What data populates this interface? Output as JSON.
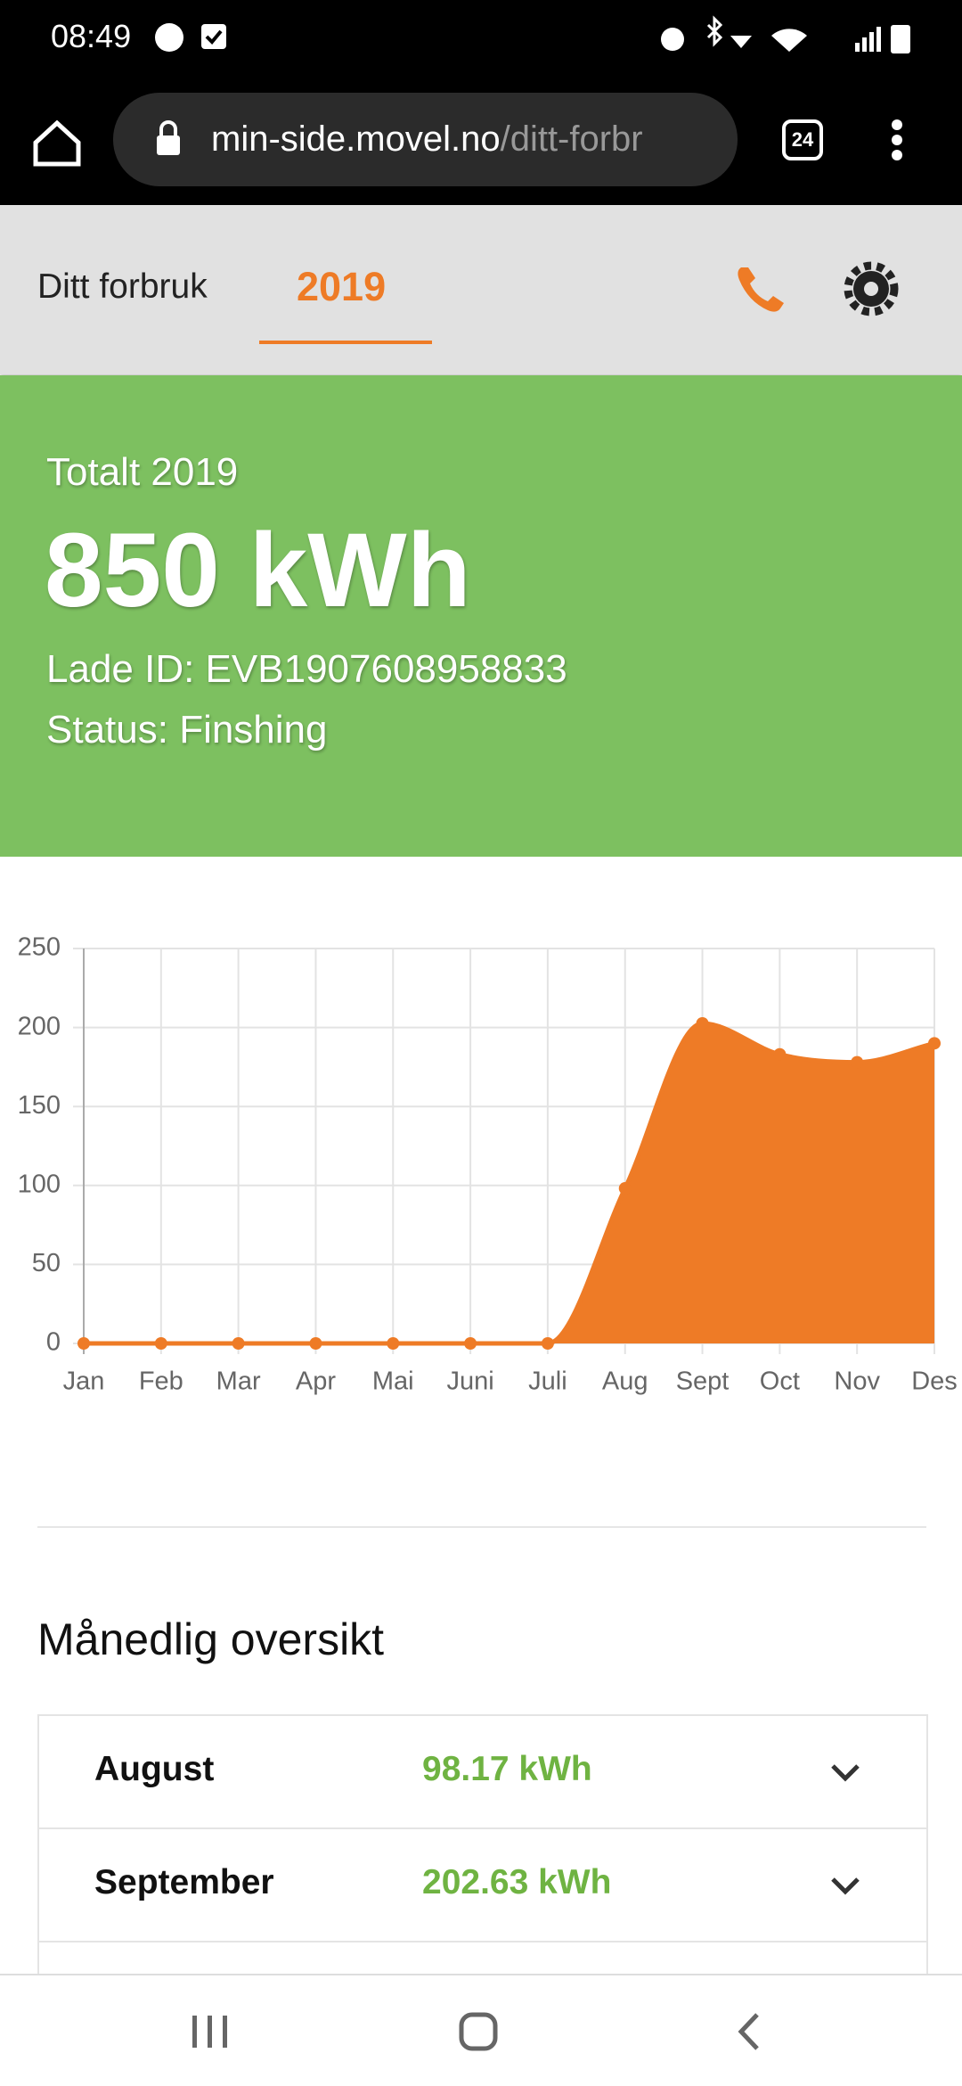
{
  "status_bar": {
    "time": "08:49"
  },
  "browser": {
    "url_host": "min-side.movel.no",
    "url_path": "/ditt-forbr",
    "tab_count": "24"
  },
  "header": {
    "tab_label": "Ditt forbruk",
    "active_tab": "2019"
  },
  "summary": {
    "label": "Totalt 2019",
    "total": "850 kWh",
    "lade_id": "Lade ID: EVB1907608958833",
    "status": "Status: Finshing"
  },
  "chart_data": {
    "type": "area",
    "categories": [
      "Jan",
      "Feb",
      "Mar",
      "Apr",
      "Mai",
      "Juni",
      "Juli",
      "Aug",
      "Sept",
      "Oct",
      "Nov",
      "Des"
    ],
    "values": [
      0,
      0,
      0,
      0,
      0,
      0,
      0,
      98.17,
      202.63,
      183,
      178,
      190
    ],
    "color": "#ee7b26",
    "ylim": [
      0,
      250
    ],
    "yticks": [
      0,
      50,
      100,
      150,
      200,
      250
    ],
    "grid": true
  },
  "overview": {
    "title": "Månedlig oversikt",
    "rows": [
      {
        "month": "August",
        "value": "98.17 kWh"
      },
      {
        "month": "September",
        "value": "202.63 kWh"
      }
    ]
  }
}
